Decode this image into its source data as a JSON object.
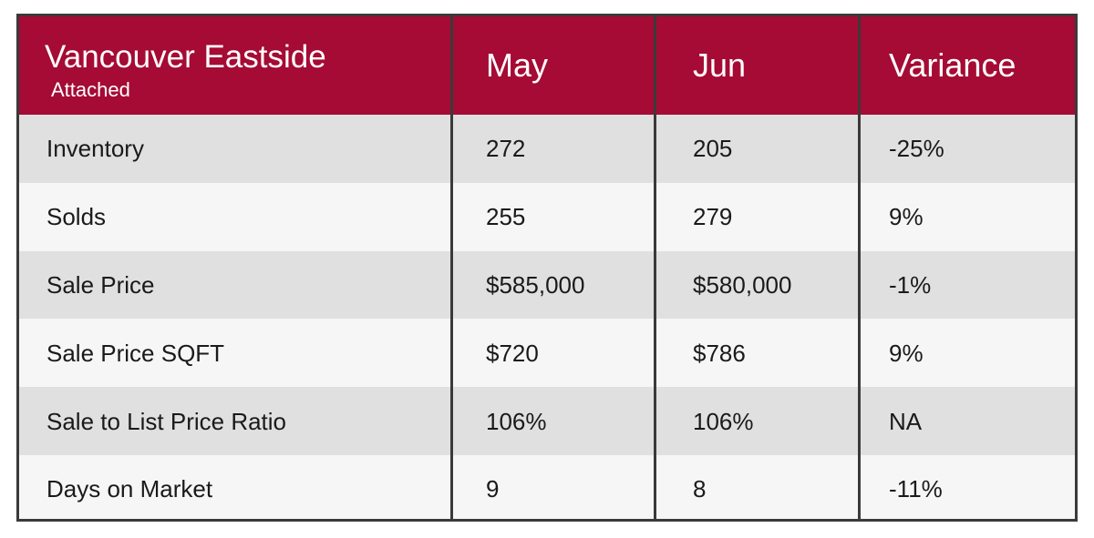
{
  "header": {
    "title": "Vancouver Eastside",
    "subtitle": "Attached",
    "columns": [
      "May",
      "Jun",
      "Variance"
    ]
  },
  "table": {
    "rows": [
      [
        "Inventory",
        "272",
        "205",
        "-25%"
      ],
      [
        "Solds",
        "255",
        "279",
        "9%"
      ],
      [
        "Sale Price",
        "$585,000",
        "$580,000",
        "-1%"
      ],
      [
        "Sale Price SQFT",
        "$720",
        "$786",
        "9%"
      ],
      [
        "Sale to List Price Ratio",
        "106%",
        "106%",
        "NA"
      ],
      [
        "Days on Market",
        "9",
        "8",
        "-11%"
      ]
    ]
  }
}
